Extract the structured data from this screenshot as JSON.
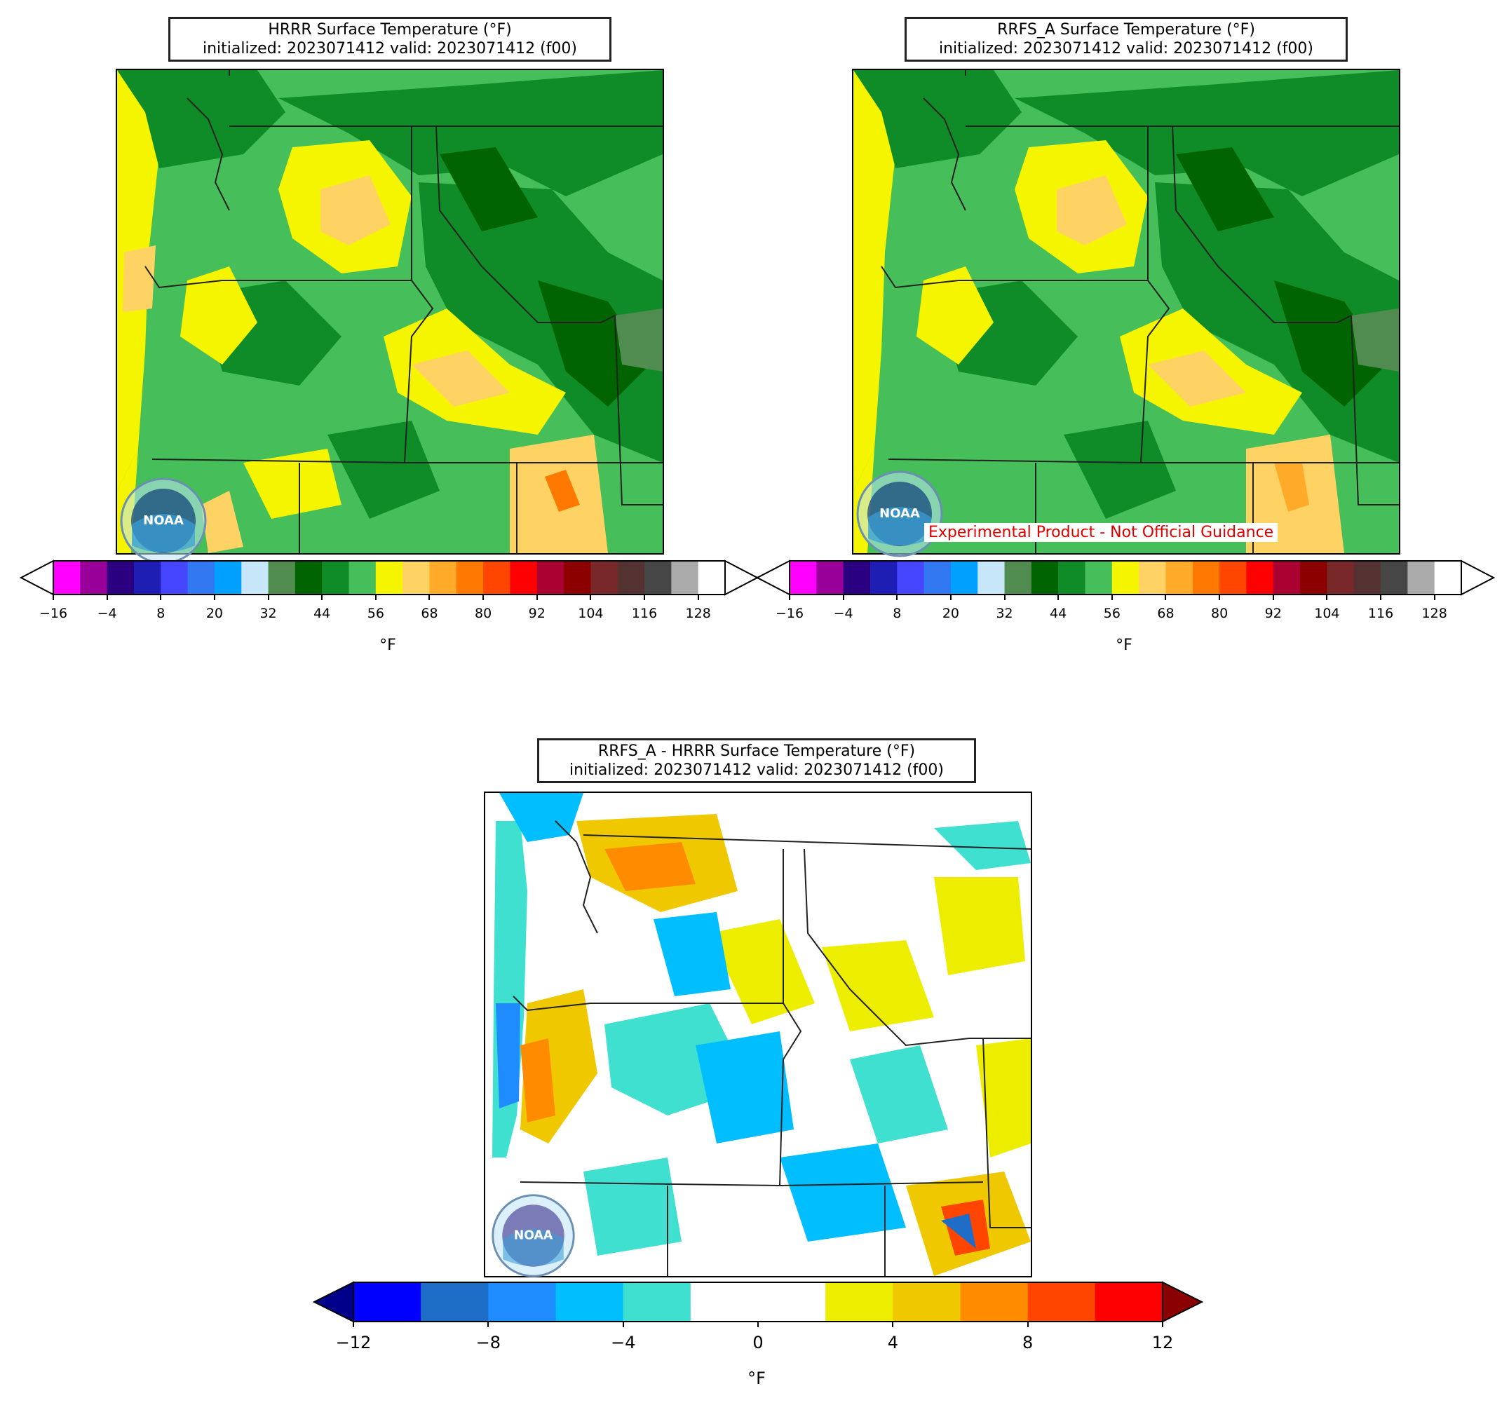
{
  "panels": {
    "hrrr": {
      "title_line1": "HRRR Surface Temperature (°F)",
      "title_line2": "initialized: 2023071412 valid: 2023071412 (f00)"
    },
    "rrfs": {
      "title_line1": "RRFS_A Surface Temperature (°F)",
      "title_line2": "initialized: 2023071412 valid: 2023071412 (f00)",
      "experimental_label": "Experimental Product - Not Official Guidance"
    },
    "diff": {
      "title_line1": "RRFS_A - HRRR Surface Temperature (°F)",
      "title_line2": "initialized: 2023071412 valid: 2023071412 (f00)"
    }
  },
  "logo": {
    "text": "NOAA",
    "icon": "noaa-logo-icon"
  },
  "temp_colorbar": {
    "unit": "°F",
    "tick_labels": [
      "−16",
      "−4",
      "8",
      "20",
      "32",
      "44",
      "56",
      "68",
      "80",
      "92",
      "104",
      "116",
      "128"
    ],
    "colors": [
      "#ff00ff",
      "#990099",
      "#2a0080",
      "#1e1eb4",
      "#4646ff",
      "#3278f0",
      "#00a0ff",
      "#c8e6fa",
      "#508c50",
      "#006400",
      "#0f8c28",
      "#46be5a",
      "#f5f500",
      "#ffd264",
      "#ffaa28",
      "#ff7800",
      "#ff4600",
      "#ff0000",
      "#aa0032",
      "#8c0000",
      "#782828",
      "#553232",
      "#464646",
      "#aaaaaa",
      "#ffffff"
    ]
  },
  "diff_colorbar": {
    "unit": "°F",
    "tick_labels": [
      "−12",
      "−8",
      "−4",
      "0",
      "4",
      "8",
      "12"
    ],
    "colors": [
      "#0000ff",
      "#1e6ec8",
      "#1e8cff",
      "#00beff",
      "#40e0d0",
      "#ffffff",
      "#ffffff",
      "#eded00",
      "#f0c800",
      "#ff8c00",
      "#ff4500",
      "#ff0000"
    ],
    "under_color": "#00008b",
    "over_color": "#8b0000"
  }
}
